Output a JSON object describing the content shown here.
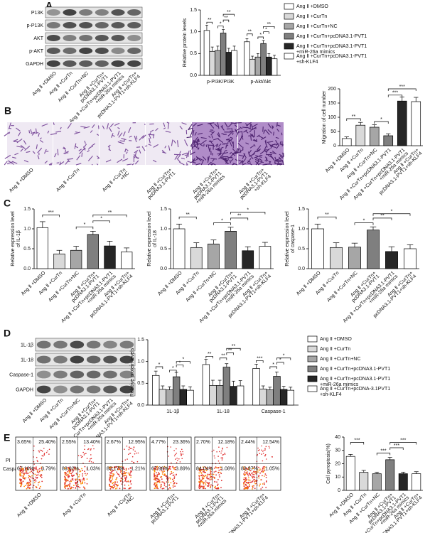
{
  "panel_labels": [
    "A",
    "B",
    "C",
    "D",
    "E"
  ],
  "blot_a": {
    "rows": [
      "P13K",
      "p-P13K",
      "AKT",
      "p-AKT",
      "GAPDH"
    ]
  },
  "blot_d": {
    "rows": [
      "1L-1β",
      "1L-18",
      "Caspase-1",
      "GAPDH"
    ]
  },
  "images_b": {
    "labels": [
      [
        "Ang Ⅱ +DMSO"
      ],
      [
        "Ang Ⅱ +CurTn"
      ],
      [
        "Ang Ⅱ +CurTn",
        "+NC"
      ],
      [
        "Ang Ⅱ +CurTn+",
        "pcDNA3.1-PVT1"
      ],
      [
        "Ang Ⅱ +CurTn+",
        "pcDNA3.1-PVT1",
        "+miR-26a mimics"
      ],
      [
        "Ang Ⅱ +CurTn+",
        "pcDNA3.1-PVT1",
        "+sh-KLF4"
      ]
    ]
  },
  "flow": {
    "y_axis": "PI",
    "x_axis": "Caspase-1",
    "plots": [
      [
        "3.65%",
        "25.40%",
        "67.16%",
        "3.79%"
      ],
      [
        "2.55%",
        "13.40%",
        "83.02%",
        "1.03%"
      ],
      [
        "2.67%",
        "12.95%",
        "83.17%",
        "1.21%"
      ],
      [
        "4.77%",
        "23.36%",
        "67.98%",
        "3.89%"
      ],
      [
        "2.70%",
        "12.18%",
        "84.04%",
        "1.08%"
      ],
      [
        "2.44%",
        "12.54%",
        "83.97%",
        "1.05%"
      ]
    ],
    "labels": [
      [
        "Ang Ⅱ +DMSO"
      ],
      [
        "Ang Ⅱ +CurTn"
      ],
      [
        "Ang Ⅱ +CurTn",
        "+NC"
      ],
      [
        "Ang Ⅱ +CurTn+",
        "pcDNA3.1-PVT1"
      ],
      [
        "Ang Ⅱ +CurTn+",
        "pcDNA3.1-PVT1",
        "+miR-26a mimics"
      ],
      [
        "Ang Ⅱ +CurTn+",
        "pcDNA3.1-PVT1+sh-KLF4"
      ]
    ]
  },
  "chart_data": [
    {
      "type": "bar",
      "ylabel": "Relative protein levels",
      "categories": [
        "p-PI3K/PI3K",
        "p-Akt/Akt"
      ],
      "series": [
        {
          "name": "Ang Ⅱ +DMSO",
          "color": "#ffffff",
          "values": [
            1.03,
            0.77
          ],
          "errors": [
            0.12,
            0.07
          ]
        },
        {
          "name": "Ang Ⅱ +CurTn",
          "color": "#d9d9d9",
          "values": [
            0.55,
            0.37
          ],
          "errors": [
            0.1,
            0.07
          ]
        },
        {
          "name": "Ang Ⅱ +CurTn+NC",
          "color": "#a6a6a6",
          "values": [
            0.57,
            0.42
          ],
          "errors": [
            0.1,
            0.08
          ]
        },
        {
          "name": "Ang Ⅱ +CurTn+pcDNA3.1-PVT1",
          "color": "#7f7f7f",
          "values": [
            0.97,
            0.73
          ],
          "errors": [
            0.08,
            0.07
          ]
        },
        {
          "name": "Ang Ⅱ +CurTn+pcDNA3.1-PVT1 +miR-26a mimics",
          "color": "#262626",
          "values": [
            0.53,
            0.42
          ],
          "errors": [
            0.09,
            0.08
          ]
        },
        {
          "name": "Ang Ⅱ +CurTn+pcDNA3.1-PVT1 +sh-KLF4",
          "color": "#ffffff",
          "values": [
            0.57,
            0.38
          ],
          "errors": [
            0.1,
            0.08
          ]
        }
      ],
      "ylim": [
        0,
        1.5
      ],
      "yticks": [
        {
          "value": 0,
          "label": "0.0"
        },
        {
          "value": 0.5,
          "label": "0.5"
        },
        {
          "value": 1,
          "label": "1.0"
        },
        {
          "value": 1.5,
          "label": "1.5"
        }
      ],
      "annotations": [
        "**",
        "*",
        "**",
        "**",
        "**",
        "*",
        "*",
        "**"
      ]
    },
    {
      "type": "bar",
      "ylabel": "Migration of cell number",
      "categories": [
        [
          "Ang Ⅱ +DMSO"
        ],
        [
          "Ang Ⅱ +CurTn"
        ],
        [
          "Ang Ⅱ +CurTn+NC"
        ],
        [
          "Ang Ⅱ +CurTn+pcDNA3.1-PVT1"
        ],
        [
          "Ang Ⅱ +CurTn+pcDNA3.1-PVT1",
          "+miR-26a mimics"
        ],
        [
          "Ang Ⅱ +CurTn+",
          "pcDNA3.1-PVT1+sh-KLF4"
        ]
      ],
      "values": [
        25,
        72,
        65,
        35,
        157,
        155
      ],
      "errors": [
        6,
        10,
        9,
        7,
        14,
        15
      ],
      "colors": [
        "#ffffff",
        "#d9d9d9",
        "#a6a6a6",
        "#7f7f7f",
        "#262626",
        "#ffffff"
      ],
      "ylim": [
        0,
        200
      ],
      "yticks": [
        0,
        50,
        100,
        150,
        200
      ],
      "annotations": [
        "**",
        "*",
        "***",
        "***"
      ]
    },
    {
      "type": "bar",
      "ylabel": [
        "Relative expression level",
        "of IL-1β"
      ],
      "categories": [
        [
          "Ang Ⅱ +DMSO"
        ],
        [
          "Ang Ⅱ +CurTn"
        ],
        [
          "Ang Ⅱ +CurTn+NC"
        ],
        [
          "Ang Ⅱ +CurTn+",
          "pcDNA3.1-PVT1"
        ],
        [
          "Ang Ⅱ +CurTn+pcDNA3.1-PVT1",
          "+miR-26a mimics"
        ],
        [
          "Ang Ⅱ +CurTn+",
          "pcDNA3.1-PVT1+sh-KLF4"
        ]
      ],
      "values": [
        1.03,
        0.37,
        0.46,
        0.86,
        0.57,
        0.42
      ],
      "errors": [
        0.15,
        0.09,
        0.1,
        0.08,
        0.12,
        0.1
      ],
      "colors": [
        "#ffffff",
        "#d9d9d9",
        "#a6a6a6",
        "#7f7f7f",
        "#262626",
        "#ffffff"
      ],
      "ylim": [
        0,
        1.5
      ],
      "yticks": [
        {
          "value": 0,
          "label": "0.0"
        },
        {
          "value": 0.5,
          "label": "0.5"
        },
        {
          "value": 1,
          "label": "1.0"
        },
        {
          "value": 1.5,
          "label": "1.5"
        }
      ],
      "annotations": [
        "***",
        "*",
        "*",
        "**"
      ]
    },
    {
      "type": "bar",
      "ylabel": [
        "Relative expression level",
        "of IL-18"
      ],
      "categories": [
        [
          "Ang Ⅱ +DMSO"
        ],
        [
          "Ang Ⅱ +CurTn"
        ],
        [
          "Ang Ⅱ +CurTn+NC"
        ],
        [
          "Ang Ⅱ +CurTn+",
          "pcDNA3.1-PVT1"
        ],
        [
          "Ang Ⅱ +CurTn+pcDNA3.1-PVT1",
          "+miR-26a mimics"
        ],
        [
          "Ang Ⅱ +CurTn+",
          "pcDNA3.1-PVT1+sh-KLF4"
        ]
      ],
      "values": [
        1.0,
        0.53,
        0.62,
        0.94,
        0.45,
        0.56
      ],
      "errors": [
        0.12,
        0.12,
        0.1,
        0.1,
        0.1,
        0.1
      ],
      "colors": [
        "#ffffff",
        "#d9d9d9",
        "#a6a6a6",
        "#7f7f7f",
        "#262626",
        "#ffffff"
      ],
      "ylim": [
        0,
        1.5
      ],
      "yticks": [
        {
          "value": 0,
          "label": "0.0"
        },
        {
          "value": 0.5,
          "label": "0.5"
        },
        {
          "value": 1,
          "label": "1.0"
        },
        {
          "value": 1.5,
          "label": "1.5"
        }
      ],
      "annotations": [
        "**",
        "*",
        "**",
        "*"
      ]
    },
    {
      "type": "bar",
      "ylabel": [
        "Relative expression level",
        "of caspase-1"
      ],
      "categories": [
        [
          "Ang Ⅱ +DMSO"
        ],
        [
          "Ang Ⅱ +CurTn"
        ],
        [
          "Ang Ⅱ +CurTn+NC"
        ],
        [
          "Ang Ⅱ +CurTn+",
          "pcDNA3.1-PVT1"
        ],
        [
          "Ang Ⅱ +CurTn+pcDNA3.1-PVT1",
          "+miR-26a mimics"
        ],
        [
          "Ang Ⅱ +CurTn+",
          "pcDNA3.1-PVT1+sh-KLF4"
        ]
      ],
      "values": [
        1.0,
        0.53,
        0.54,
        0.97,
        0.43,
        0.5
      ],
      "errors": [
        0.12,
        0.12,
        0.1,
        0.08,
        0.12,
        0.1
      ],
      "colors": [
        "#ffffff",
        "#d9d9d9",
        "#a6a6a6",
        "#7f7f7f",
        "#262626",
        "#ffffff"
      ],
      "ylim": [
        0,
        1.5
      ],
      "yticks": [
        {
          "value": 0,
          "label": "0.0"
        },
        {
          "value": 0.5,
          "label": "0.5"
        },
        {
          "value": 1,
          "label": "1.0"
        },
        {
          "value": 1.5,
          "label": "1.5"
        }
      ],
      "annotations": [
        "**",
        "*",
        "**",
        "*"
      ]
    },
    {
      "type": "bar",
      "ylabel": "Relative protein levels",
      "categories": [
        "1L-1β",
        "1L-18",
        "Caspase-1"
      ],
      "series": [
        {
          "name": "Ang Ⅱ +DMSO",
          "color": "#ffffff",
          "values": [
            0.68,
            0.93,
            0.84
          ],
          "errors": [
            0.1,
            0.12,
            0.1
          ]
        },
        {
          "name": "Ang Ⅱ +CurTn",
          "color": "#d9d9d9",
          "values": [
            0.36,
            0.45,
            0.37
          ],
          "errors": [
            0.08,
            0.12,
            0.07
          ]
        },
        {
          "name": "Ang Ⅱ +CurTn+NC",
          "color": "#a6a6a6",
          "values": [
            0.35,
            0.45,
            0.35
          ],
          "errors": [
            0.07,
            0.12,
            0.06
          ]
        },
        {
          "name": "Ang Ⅱ +CurTn+pcDNA3.1-PVT1",
          "color": "#7f7f7f",
          "values": [
            0.65,
            0.87,
            0.66
          ],
          "errors": [
            0.1,
            0.08,
            0.1
          ]
        },
        {
          "name": "Ang Ⅱ +CurTn+pcDNA3.1-PVT1 +miR-26a mimics",
          "color": "#262626",
          "values": [
            0.36,
            0.43,
            0.36
          ],
          "errors": [
            0.08,
            0.12,
            0.07
          ]
        },
        {
          "name": "Ang Ⅱ +CurTn+pcDNA-3.1PVT1 +sh-KLF4",
          "color": "#ffffff",
          "values": [
            0.34,
            0.44,
            0.34
          ],
          "errors": [
            0.08,
            0.12,
            0.07
          ]
        }
      ],
      "ylim": [
        0,
        1.5
      ],
      "yticks": [
        {
          "value": 0,
          "label": "0.0"
        },
        {
          "value": 0.5,
          "label": "0.5"
        },
        {
          "value": 1,
          "label": "1.0"
        },
        {
          "value": 1.5,
          "label": "1.5"
        }
      ],
      "annotations": [
        "*",
        "*",
        "*",
        "*",
        "**",
        "**",
        "**",
        "**",
        "***",
        "*",
        "*",
        "*"
      ]
    },
    {
      "type": "bar",
      "ylabel": "Cell pyroptosis(%)",
      "categories": [
        [
          "Ang Ⅱ +DMSO"
        ],
        [
          "Ang Ⅱ +CurTn"
        ],
        [
          "Ang Ⅱ +CurTn+NC"
        ],
        [
          "Ang Ⅱ +CurTn+",
          "pcDNA3.1-PVT1"
        ],
        [
          "Ang Ⅱ +CurTn+pcDNA3.1-PVT1",
          "+miR-26a mimics"
        ],
        [
          "Ang Ⅱ +CurTn+",
          "pcDNA3.1-PVT1+sh-KLF4"
        ]
      ],
      "values": [
        25.5,
        13.5,
        12.5,
        23,
        12.5,
        12.5
      ],
      "errors": [
        1.5,
        1.5,
        1.2,
        1.8,
        1.2,
        1.5
      ],
      "colors": [
        "#ffffff",
        "#d9d9d9",
        "#a6a6a6",
        "#7f7f7f",
        "#262626",
        "#ffffff"
      ],
      "ylim": [
        0,
        40
      ],
      "yticks": [
        0,
        10,
        20,
        30,
        40
      ],
      "annotations": [
        "***",
        "***",
        "***",
        "***"
      ]
    }
  ]
}
